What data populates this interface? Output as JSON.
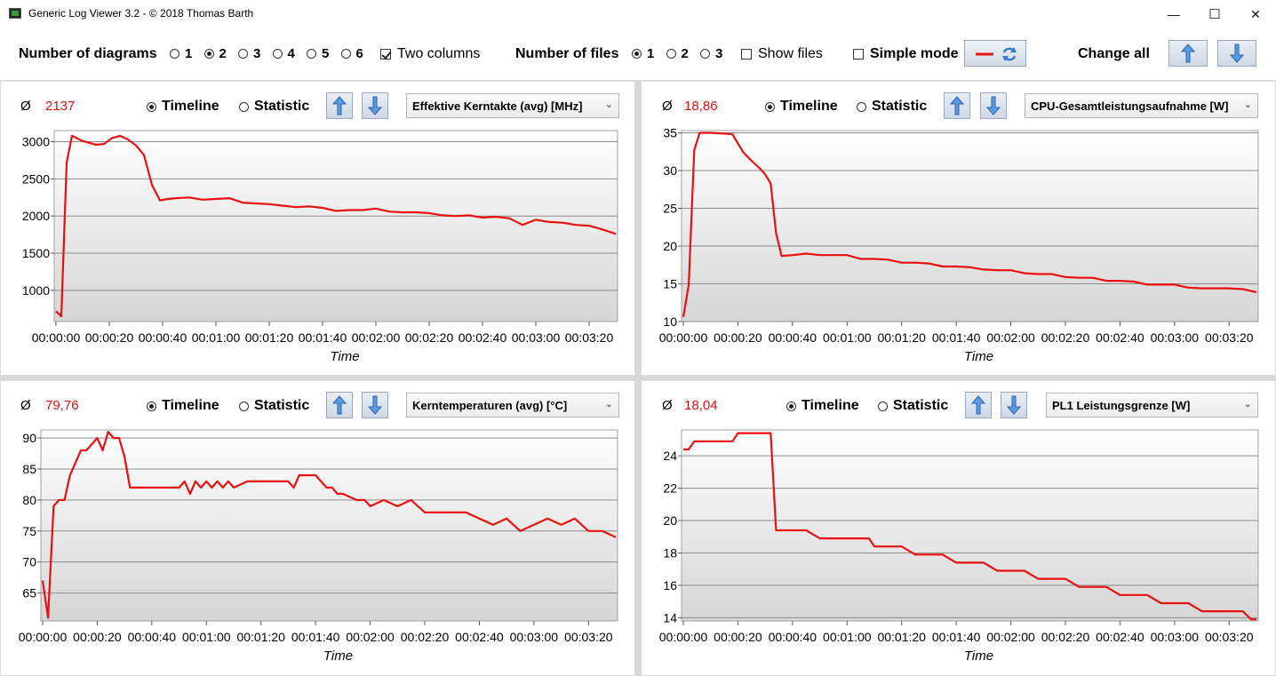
{
  "window": {
    "title": "Generic Log Viewer 3.2 - © 2018 Thomas Barth",
    "min_glyph": "—",
    "max_glyph": "☐",
    "close_glyph": "✕"
  },
  "toolbar": {
    "diagrams_label": "Number of diagrams",
    "diagram_options": [
      "1",
      "2",
      "3",
      "4",
      "5",
      "6"
    ],
    "diagram_selected": "2",
    "two_columns_label": "Two columns",
    "two_columns_checked": true,
    "files_label": "Number of files",
    "file_options": [
      "1",
      "2",
      "3"
    ],
    "file_selected": "1",
    "show_files_label": "Show files",
    "show_files_checked": false,
    "simple_mode_label": "Simple mode",
    "simple_mode_checked": false,
    "change_all_label": "Change all"
  },
  "colors": {
    "line": "#e81010",
    "avg_text": "#e01010",
    "button_arrow": "#3b7ed6"
  },
  "icons": {
    "up": "arrow-up-icon",
    "down": "arrow-down-icon",
    "style": "line-style-icon",
    "refresh": "refresh-icon"
  },
  "panels": [
    {
      "avg_symbol": "Ø",
      "avg_value": "2137",
      "timeline_label": "Timeline",
      "statistic_label": "Statistic",
      "mode": "Timeline",
      "channel": "Effektive Kerntakte (avg) [MHz]"
    },
    {
      "avg_symbol": "Ø",
      "avg_value": "18,86",
      "timeline_label": "Timeline",
      "statistic_label": "Statistic",
      "mode": "Timeline",
      "channel": "CPU-Gesamtleistungsaufnahme [W]"
    },
    {
      "avg_symbol": "Ø",
      "avg_value": "79,76",
      "timeline_label": "Timeline",
      "statistic_label": "Statistic",
      "mode": "Timeline",
      "channel": "Kerntemperaturen (avg) [°C]"
    },
    {
      "avg_symbol": "Ø",
      "avg_value": "18,04",
      "timeline_label": "Timeline",
      "statistic_label": "Statistic",
      "mode": "Timeline",
      "channel": "PL1 Leistungsgrenze [W]"
    }
  ],
  "chart_data": [
    {
      "type": "line",
      "xlabel": "Time",
      "x_tick_labels": [
        "00:00:00",
        "00:00:20",
        "00:00:40",
        "00:01:00",
        "00:01:20",
        "00:01:40",
        "00:02:00",
        "00:02:20",
        "00:02:40",
        "00:03:00",
        "00:03:20"
      ],
      "x_range_s": [
        0,
        210
      ],
      "y_ticks": [
        1000,
        1500,
        2000,
        2500,
        3000
      ],
      "ylim": [
        580,
        3150
      ],
      "grid": true,
      "series": [
        {
          "x": [
            0,
            2,
            4,
            6,
            10,
            15,
            18,
            21,
            24,
            27,
            30,
            33,
            36,
            39,
            42,
            45,
            50,
            55,
            60,
            65,
            70,
            75,
            80,
            85,
            90,
            95,
            100,
            105,
            110,
            115,
            120,
            125,
            130,
            135,
            140,
            145,
            150,
            155,
            160,
            165,
            170,
            175,
            180,
            185,
            190,
            195,
            200,
            205,
            210
          ],
          "y": [
            720,
            650,
            2720,
            3080,
            3010,
            2960,
            2970,
            3050,
            3080,
            3030,
            2950,
            2820,
            2420,
            2210,
            2230,
            2240,
            2250,
            2220,
            2230,
            2240,
            2180,
            2170,
            2160,
            2140,
            2120,
            2130,
            2110,
            2070,
            2080,
            2080,
            2100,
            2060,
            2050,
            2050,
            2040,
            2010,
            2000,
            2010,
            1980,
            1990,
            1970,
            1880,
            1950,
            1920,
            1910,
            1880,
            1870,
            1820,
            1760
          ]
        }
      ]
    },
    {
      "type": "line",
      "xlabel": "Time",
      "x_tick_labels": [
        "00:00:00",
        "00:00:20",
        "00:00:40",
        "00:01:00",
        "00:01:20",
        "00:01:40",
        "00:02:00",
        "00:02:20",
        "00:02:40",
        "00:03:00",
        "00:03:20"
      ],
      "x_range_s": [
        0,
        210
      ],
      "y_ticks": [
        10,
        15,
        20,
        25,
        30,
        35
      ],
      "ylim": [
        10,
        35.3
      ],
      "grid": true,
      "series": [
        {
          "x": [
            0,
            2,
            4,
            6,
            10,
            15,
            18,
            20,
            22,
            25,
            28,
            30,
            32,
            34,
            36,
            40,
            45,
            50,
            55,
            60,
            65,
            70,
            75,
            80,
            85,
            90,
            95,
            100,
            105,
            110,
            115,
            120,
            125,
            130,
            135,
            140,
            145,
            150,
            155,
            160,
            165,
            170,
            175,
            180,
            185,
            190,
            195,
            200,
            205,
            210
          ],
          "y": [
            10.6,
            14.9,
            32.7,
            35,
            35,
            34.9,
            34.8,
            33.6,
            32.4,
            31.3,
            30.3,
            29.5,
            28.3,
            21.7,
            18.7,
            18.8,
            19,
            18.8,
            18.8,
            18.8,
            18.3,
            18.3,
            18.2,
            17.8,
            17.8,
            17.7,
            17.3,
            17.3,
            17.2,
            16.9,
            16.8,
            16.8,
            16.4,
            16.3,
            16.3,
            15.9,
            15.8,
            15.8,
            15.4,
            15.4,
            15.3,
            14.9,
            14.9,
            14.9,
            14.5,
            14.4,
            14.4,
            14.4,
            14.3,
            13.9
          ]
        }
      ]
    },
    {
      "type": "line",
      "xlabel": "Time",
      "x_tick_labels": [
        "00:00:00",
        "00:00:20",
        "00:00:40",
        "00:01:00",
        "00:01:20",
        "00:01:40",
        "00:02:00",
        "00:02:20",
        "00:02:40",
        "00:03:00",
        "00:03:20"
      ],
      "x_range_s": [
        0,
        210
      ],
      "y_ticks": [
        65,
        70,
        75,
        80,
        85,
        90
      ],
      "ylim": [
        60.5,
        91.3
      ],
      "grid": true,
      "series": [
        {
          "x": [
            0,
            2,
            4,
            6,
            8,
            10,
            12,
            14,
            16,
            18,
            20,
            22,
            24,
            26,
            28,
            30,
            32,
            34,
            36,
            38,
            40,
            45,
            50,
            52,
            54,
            56,
            58,
            60,
            62,
            64,
            66,
            68,
            70,
            75,
            80,
            85,
            90,
            92,
            94,
            96,
            100,
            102,
            104,
            106,
            108,
            110,
            115,
            118,
            120,
            125,
            130,
            135,
            140,
            145,
            148,
            150,
            152,
            155,
            160,
            165,
            170,
            175,
            180,
            185,
            190,
            195,
            200,
            205,
            210
          ],
          "y": [
            67,
            61,
            79,
            80,
            80,
            84,
            86,
            88,
            88,
            89,
            90,
            88,
            91,
            90,
            90,
            87,
            82,
            82,
            82,
            82,
            82,
            82,
            82,
            83,
            81,
            83,
            82,
            83,
            82,
            83,
            82,
            83,
            82,
            83,
            83,
            83,
            83,
            82,
            84,
            84,
            84,
            83,
            82,
            82,
            81,
            81,
            80,
            80,
            79,
            80,
            79,
            80,
            78,
            78,
            78,
            78,
            78,
            78,
            77,
            76,
            77,
            75,
            76,
            77,
            76,
            77,
            75,
            75,
            74
          ]
        }
      ]
    },
    {
      "type": "line",
      "xlabel": "Time",
      "x_tick_labels": [
        "00:00:00",
        "00:00:20",
        "00:00:40",
        "00:01:00",
        "00:01:20",
        "00:01:40",
        "00:02:00",
        "00:02:20",
        "00:02:40",
        "00:03:00",
        "00:03:20"
      ],
      "x_range_s": [
        0,
        210
      ],
      "y_ticks": [
        14,
        16,
        18,
        20,
        22,
        24
      ],
      "ylim": [
        13.8,
        25.6
      ],
      "grid": true,
      "series": [
        {
          "x": [
            0,
            2,
            4,
            6,
            8,
            10,
            12,
            14,
            16,
            18,
            20,
            22,
            24,
            26,
            28,
            30,
            32,
            34,
            36,
            38,
            40,
            45,
            50,
            52,
            54,
            56,
            58,
            60,
            62,
            64,
            66,
            68,
            70,
            75,
            80,
            85,
            90,
            95,
            100,
            105,
            110,
            115,
            120,
            125,
            130,
            135,
            140,
            145,
            150,
            155,
            160,
            165,
            170,
            175,
            180,
            185,
            190,
            195,
            200,
            205,
            208,
            210
          ],
          "y": [
            24.4,
            24.4,
            24.9,
            24.9,
            24.9,
            24.9,
            24.9,
            24.9,
            24.9,
            24.9,
            25.4,
            25.4,
            25.4,
            25.4,
            25.4,
            25.4,
            25.4,
            19.4,
            19.4,
            19.4,
            19.4,
            19.4,
            18.9,
            18.9,
            18.9,
            18.9,
            18.9,
            18.9,
            18.9,
            18.9,
            18.9,
            18.9,
            18.4,
            18.4,
            18.4,
            17.9,
            17.9,
            17.9,
            17.4,
            17.4,
            17.4,
            16.9,
            16.9,
            16.9,
            16.4,
            16.4,
            16.4,
            15.9,
            15.9,
            15.9,
            15.4,
            15.4,
            15.4,
            14.9,
            14.9,
            14.9,
            14.4,
            14.4,
            14.4,
            14.4,
            13.9,
            13.9
          ]
        }
      ]
    }
  ]
}
